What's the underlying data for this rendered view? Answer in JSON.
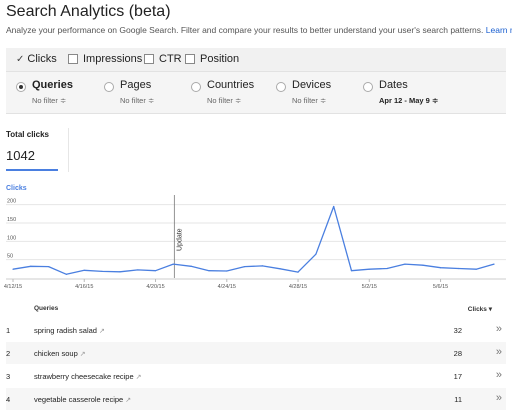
{
  "header": {
    "title": "Search Analytics (beta)",
    "subtitle": "Analyze your performance on Google Search. Filter and compare your results to better understand your user's search patterns.",
    "learn_more": "Learn more."
  },
  "metrics": [
    {
      "label": "Clicks",
      "checked": true
    },
    {
      "label": "Impressions",
      "checked": false
    },
    {
      "label": "CTR",
      "checked": false
    },
    {
      "label": "Position",
      "checked": false
    }
  ],
  "dimensions": [
    {
      "label": "Queries",
      "filter": "No filter",
      "selected": true
    },
    {
      "label": "Pages",
      "filter": "No filter",
      "selected": false
    },
    {
      "label": "Countries",
      "filter": "No filter",
      "selected": false
    },
    {
      "label": "Devices",
      "filter": "No filter",
      "selected": false
    },
    {
      "label": "Dates",
      "filter": "Apr 12 - May 9",
      "selected": false
    }
  ],
  "dropdown_glyph": "≑",
  "summary": {
    "label": "Total clicks",
    "value": "1042"
  },
  "chart_data": {
    "type": "line",
    "title": "",
    "ylabel": "Clicks",
    "xlabel": "",
    "ylim": [
      0,
      210
    ],
    "yticks": [
      "200",
      "150",
      "100",
      "50"
    ],
    "ytick_values": [
      200,
      150,
      100,
      50
    ],
    "xtick_labels": [
      "4/12/15",
      "4/16/15",
      "4/20/15",
      "4/24/15",
      "4/28/15",
      "5/2/15",
      "5/6/15"
    ],
    "xtick_index": [
      0,
      4,
      8,
      12,
      16,
      20,
      24
    ],
    "series": [
      {
        "name": "Clicks",
        "color": "#4a7fe0",
        "values": [
          24,
          32,
          31,
          10,
          21,
          18,
          17,
          22,
          20,
          38,
          32,
          20,
          19,
          31,
          33,
          25,
          16,
          65,
          195,
          20,
          24,
          26,
          38,
          35,
          28,
          26,
          24,
          38
        ]
      }
    ],
    "annotation": {
      "label": "Update",
      "index": 9
    },
    "grid": true
  },
  "table": {
    "headers": {
      "query": "Queries",
      "clicks": "Clicks ▾"
    },
    "rows": [
      {
        "num": "1",
        "query": "spring radish salad",
        "clicks": "32"
      },
      {
        "num": "2",
        "query": "chicken soup",
        "clicks": "28"
      },
      {
        "num": "3",
        "query": "strawberry cheesecake recipe",
        "clicks": "17"
      },
      {
        "num": "4",
        "query": "vegetable casserole recipe",
        "clicks": "11"
      }
    ],
    "row_arrow": "»",
    "ext_icon": "↗"
  }
}
